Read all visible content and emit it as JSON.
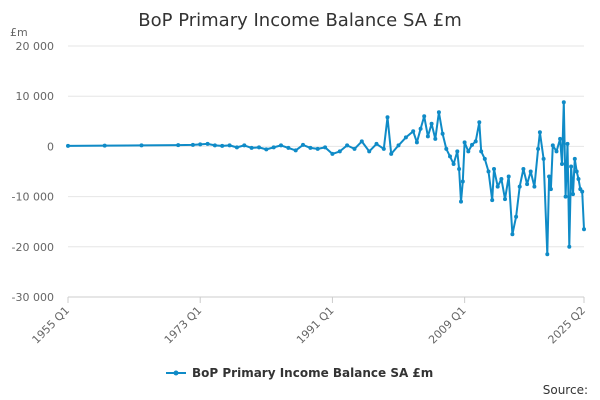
{
  "chart_data": {
    "type": "line",
    "title": "BoP Primary Income Balance SA £m",
    "unit_label": "£m",
    "source_label": "Source:",
    "ylim": [
      -30000,
      20000
    ],
    "y_ticks": [
      20000,
      10000,
      0,
      -10000,
      -20000,
      -30000
    ],
    "y_tick_labels": [
      "20 000",
      "10 000",
      "0",
      "-10 000",
      "-20 000",
      "-30 000"
    ],
    "x_start": "1955 Q1",
    "x_end": "2025 Q2",
    "x_ticks": [
      "1955 Q1",
      "1973 Q1",
      "1991 Q1",
      "2009 Q1",
      "2025 Q2"
    ],
    "grid": "horizontal",
    "legend_position": "bottom",
    "series": [
      {
        "name": "BoP Primary Income Balance SA £m",
        "color": "#0f8bc7",
        "points": [
          [
            "1955 Q1",
            100
          ],
          [
            "1960 Q1",
            150
          ],
          [
            "1965 Q1",
            200
          ],
          [
            "1970 Q1",
            250
          ],
          [
            "1972 Q1",
            300
          ],
          [
            "1973 Q1",
            400
          ],
          [
            "1974 Q1",
            500
          ],
          [
            "1975 Q1",
            200
          ],
          [
            "1976 Q1",
            100
          ],
          [
            "1977 Q1",
            200
          ],
          [
            "1978 Q1",
            -200
          ],
          [
            "1979 Q1",
            200
          ],
          [
            "1980 Q1",
            -300
          ],
          [
            "1981 Q1",
            -200
          ],
          [
            "1982 Q1",
            -600
          ],
          [
            "1983 Q1",
            -200
          ],
          [
            "1984 Q1",
            200
          ],
          [
            "1985 Q1",
            -300
          ],
          [
            "1986 Q1",
            -800
          ],
          [
            "1987 Q1",
            300
          ],
          [
            "1988 Q1",
            -300
          ],
          [
            "1989 Q1",
            -500
          ],
          [
            "1990 Q1",
            -200
          ],
          [
            "1991 Q1",
            -1500
          ],
          [
            "1992 Q1",
            -1000
          ],
          [
            "1993 Q1",
            200
          ],
          [
            "1994 Q1",
            -500
          ],
          [
            "1995 Q1",
            1000
          ],
          [
            "1996 Q1",
            -1000
          ],
          [
            "1997 Q1",
            500
          ],
          [
            "1998 Q1",
            -500
          ],
          [
            "1998 Q3",
            5800
          ],
          [
            "1999 Q1",
            -1500
          ],
          [
            "2000 Q1",
            200
          ],
          [
            "2001 Q1",
            1800
          ],
          [
            "2002 Q1",
            3000
          ],
          [
            "2002 Q3",
            800
          ],
          [
            "2003 Q1",
            3500
          ],
          [
            "2003 Q3",
            6000
          ],
          [
            "2004 Q1",
            2000
          ],
          [
            "2004 Q3",
            4500
          ],
          [
            "2005 Q1",
            1500
          ],
          [
            "2005 Q3",
            6800
          ],
          [
            "2006 Q1",
            2500
          ],
          [
            "2006 Q3",
            -500
          ],
          [
            "2007 Q1",
            -2000
          ],
          [
            "2007 Q3",
            -3500
          ],
          [
            "2008 Q1",
            -1000
          ],
          [
            "2008 Q2",
            -4500
          ],
          [
            "2008 Q3",
            -11000
          ],
          [
            "2008 Q4",
            -7000
          ],
          [
            "2009 Q1",
            800
          ],
          [
            "2009 Q3",
            -1000
          ],
          [
            "2010 Q1",
            300
          ],
          [
            "2010 Q3",
            1000
          ],
          [
            "2011 Q1",
            4800
          ],
          [
            "2011 Q2",
            -1000
          ],
          [
            "2011 Q4",
            -2500
          ],
          [
            "2012 Q2",
            -5000
          ],
          [
            "2012 Q4",
            -10700
          ],
          [
            "2013 Q1",
            -4500
          ],
          [
            "2013 Q3",
            -8000
          ],
          [
            "2014 Q1",
            -6500
          ],
          [
            "2014 Q3",
            -10500
          ],
          [
            "2015 Q1",
            -6000
          ],
          [
            "2015 Q3",
            -17500
          ],
          [
            "2016 Q1",
            -14000
          ],
          [
            "2016 Q3",
            -8000
          ],
          [
            "2017 Q1",
            -4500
          ],
          [
            "2017 Q3",
            -7500
          ],
          [
            "2018 Q1",
            -5000
          ],
          [
            "2018 Q3",
            -8000
          ],
          [
            "2019 Q1",
            -500
          ],
          [
            "2019 Q2",
            2800
          ],
          [
            "2019 Q4",
            -2500
          ],
          [
            "2020 Q2",
            -21500
          ],
          [
            "2020 Q3",
            -6000
          ],
          [
            "2020 Q4",
            -8500
          ],
          [
            "2021 Q1",
            200
          ],
          [
            "2021 Q3",
            -1000
          ],
          [
            "2022 Q1",
            1500
          ],
          [
            "2022 Q2",
            -3500
          ],
          [
            "2022 Q3",
            8800
          ],
          [
            "2022 Q4",
            -10000
          ],
          [
            "2023 Q1",
            500
          ],
          [
            "2023 Q2",
            -20000
          ],
          [
            "2023 Q3",
            -4000
          ],
          [
            "2023 Q4",
            -9500
          ],
          [
            "2024 Q1",
            -2500
          ],
          [
            "2024 Q2",
            -5000
          ],
          [
            "2024 Q3",
            -6500
          ],
          [
            "2024 Q4",
            -8500
          ],
          [
            "2025 Q1",
            -9000
          ],
          [
            "2025 Q2",
            -16500
          ]
        ]
      }
    ]
  }
}
